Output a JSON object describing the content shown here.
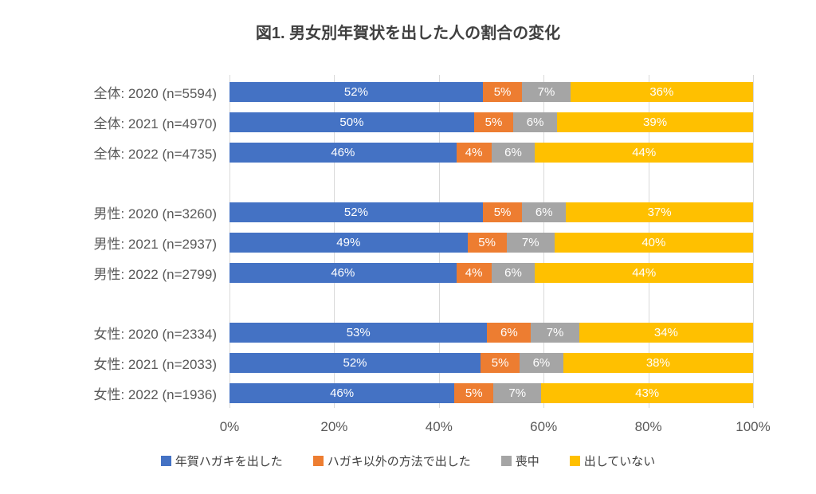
{
  "chart_data": {
    "type": "bar",
    "stacked": true,
    "orientation": "horizontal",
    "title": "図1. 男女別年賀状を出した人の割合の変化",
    "xlim": [
      0,
      100
    ],
    "x_ticks": [
      "0%",
      "20%",
      "40%",
      "60%",
      "80%",
      "100%"
    ],
    "grid": "vertical",
    "legend_position": "bottom",
    "value_suffix": "%",
    "series": [
      {
        "key": "sent-nenga-hagaki",
        "name": "年賀ハガキを出した",
        "color": "#4472C4",
        "values": [
          52,
          50,
          46,
          52,
          49,
          46,
          53,
          52,
          46
        ]
      },
      {
        "key": "sent-other-method",
        "name": "ハガキ以外の方法で出した",
        "color": "#ED7D31",
        "values": [
          5,
          5,
          4,
          5,
          5,
          4,
          6,
          5,
          5
        ]
      },
      {
        "key": "mourning",
        "name": "喪中",
        "color": "#A5A5A5",
        "values": [
          7,
          6,
          6,
          6,
          7,
          6,
          7,
          6,
          7
        ]
      },
      {
        "key": "did-not-send",
        "name": "出していない",
        "color": "#FFC000",
        "values": [
          36,
          39,
          44,
          37,
          40,
          44,
          34,
          38,
          43
        ]
      }
    ],
    "categories": [
      "全体: 2020 (n=5594)",
      "全体: 2021 (n=4970)",
      "全体: 2022 (n=4735)",
      "男性: 2020 (n=3260)",
      "男性: 2021 (n=2937)",
      "男性: 2022 (n=2799)",
      "女性: 2020 (n=2334)",
      "女性: 2021 (n=2033)",
      "女性: 2022 (n=1936)"
    ],
    "groups": [
      {
        "key": "zentai",
        "rows": [
          {
            "label": "全体: 2020 (n=5594)",
            "values": [
              52,
              5,
              7,
              36
            ],
            "labels": [
              "52%",
              "5%",
              "7%",
              "36%"
            ]
          },
          {
            "label": "全体: 2021 (n=4970)",
            "values": [
              50,
              5,
              6,
              39
            ],
            "labels": [
              "50%",
              "5%",
              "6%",
              "39%"
            ]
          },
          {
            "label": "全体: 2022 (n=4735)",
            "values": [
              46,
              4,
              6,
              44
            ],
            "labels": [
              "46%",
              "4%",
              "6%",
              "44%"
            ]
          }
        ]
      },
      {
        "key": "dansei",
        "rows": [
          {
            "label": "男性: 2020 (n=3260)",
            "values": [
              52,
              5,
              6,
              37
            ],
            "labels": [
              "52%",
              "5%",
              "6%",
              "37%"
            ]
          },
          {
            "label": "男性: 2021 (n=2937)",
            "values": [
              49,
              5,
              7,
              40
            ],
            "labels": [
              "49%",
              "5%",
              "7%",
              "40%"
            ]
          },
          {
            "label": "男性: 2022 (n=2799)",
            "values": [
              46,
              4,
              6,
              44
            ],
            "labels": [
              "46%",
              "4%",
              "6%",
              "44%"
            ]
          }
        ]
      },
      {
        "key": "josei",
        "rows": [
          {
            "label": "女性: 2020 (n=2334)",
            "values": [
              53,
              6,
              7,
              34
            ],
            "labels": [
              "53%",
              "6%",
              "7%",
              "34%"
            ]
          },
          {
            "label": "女性: 2021 (n=2033)",
            "values": [
              52,
              5,
              6,
              38
            ],
            "labels": [
              "52%",
              "5%",
              "6%",
              "38%"
            ]
          },
          {
            "label": "女性: 2022 (n=1936)",
            "values": [
              46,
              5,
              7,
              43
            ],
            "labels": [
              "46%",
              "5%",
              "7%",
              "43%"
            ]
          }
        ]
      }
    ]
  },
  "colors": {
    "grid": "#d9d9d9",
    "axis_text": "#595959",
    "title_text": "#404040",
    "value_label_text": "#ffffff"
  }
}
